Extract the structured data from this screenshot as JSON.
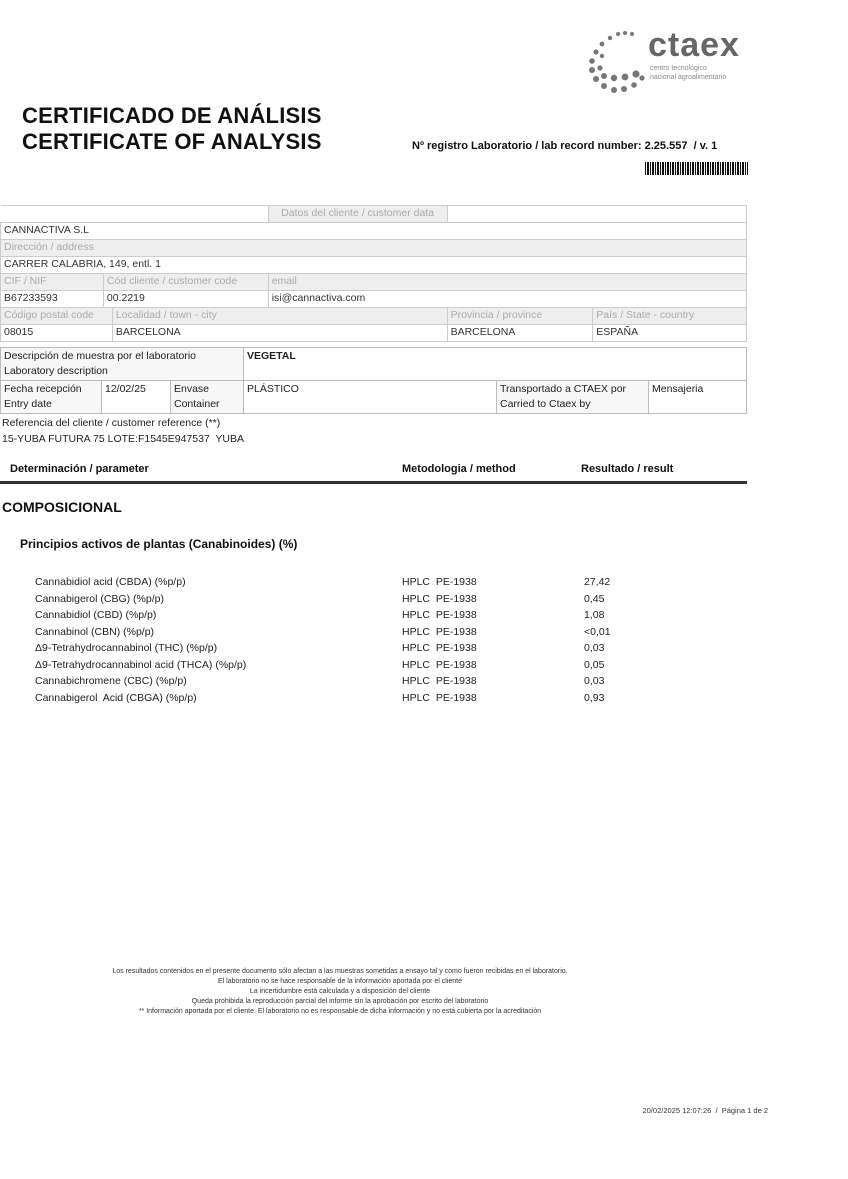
{
  "logo": {
    "name": "ctaex",
    "subtitle_1": "centro tecnológico",
    "subtitle_2": "nacional agroalimentario"
  },
  "title": {
    "es": "CERTIFICADO DE ANÁLISIS",
    "en": "CERTIFICATE OF ANALYSIS"
  },
  "record": {
    "label": "Nº registro Laboratorio / lab record number:",
    "number": "2.25.557",
    "version": "/ v. 1"
  },
  "customer": {
    "header": "Datos del cliente / customer data",
    "name": "CANNACTIVA S.L",
    "address_label": "Dirección / address",
    "address": "CARRER CALABRIA, 149, entl. 1",
    "cif_label": "CIF / NIF",
    "code_label": "Cód cliente / customer code",
    "email_label": "email",
    "cif": "B67233593",
    "code": "00.2219",
    "email": "isi@cannactiva.com",
    "postal_label": "Código postal code",
    "town_label": "Localidad / town - city",
    "province_label": "Provincia / province",
    "country_label": "País / State - country",
    "postal": "08015",
    "town": "BARCELONA",
    "province": "BARCELONA",
    "country": "ESPAÑA"
  },
  "sample": {
    "desc_label_1": "Descripción de muestra por el laboratorio",
    "desc_label_2": "Laboratory description",
    "desc": "VEGETAL",
    "date_label_1": "Fecha recepción",
    "date_label_2": "Entry date",
    "date": "12/02/25",
    "container_label_1": "Envase",
    "container_label_2": "Container",
    "container": "PLÁSTICO",
    "carried_label_1": "Transportado a CTAEX por",
    "carried_label_2": "Carried to Ctaex by",
    "carried": "Mensajeria",
    "ref_label": "Referencia del cliente / customer reference (**)",
    "ref": "15-YUBA FUTURA 75 LOTE:F1545E947537  YUBA"
  },
  "columns": {
    "parameter": "Determinación / parameter",
    "method": "Metodologia / method",
    "result": "Resultado / result"
  },
  "section": "COMPOSICIONAL",
  "subsection": "Principios activos de plantas (Canabinoides) (%)",
  "results": [
    {
      "parameter": "Cannabidiol acid (CBDA) (%p/p)",
      "method": "HPLC  PE-1938",
      "result": "27,42"
    },
    {
      "parameter": "Cannabigerol (CBG) (%p/p)",
      "method": "HPLC  PE-1938",
      "result": "0,45"
    },
    {
      "parameter": "Cannabidiol (CBD) (%p/p)",
      "method": "HPLC  PE-1938",
      "result": "1,08"
    },
    {
      "parameter": "Cannabinol (CBN) (%p/p)",
      "method": "HPLC  PE-1938",
      "result": "<0,01"
    },
    {
      "parameter": "Δ9-Tetrahydrocannabinol (THC) (%p/p)",
      "method": "HPLC  PE-1938",
      "result": "0,03"
    },
    {
      "parameter": "Δ9-Tetrahydrocannabinol acid (THCA) (%p/p)",
      "method": "HPLC  PE-1938",
      "result": "0,05"
    },
    {
      "parameter": "Cannabichromene (CBC) (%p/p)",
      "method": "HPLC  PE-1938",
      "result": "0,03"
    },
    {
      "parameter": "Cannabigerol  Acid (CBGA) (%p/p)",
      "method": "HPLC  PE-1938",
      "result": "0,93"
    }
  ],
  "footer": [
    "Los resultados contenidos en el presente documento sólo afectan a las muestras sometidas a ensayo tal y como fueron recibidas en el laboratorio.",
    "El laboratorio no se hace responsable de la información aportada por el cliente",
    "La incertidumbre está calculada y a disposición del cliente",
    "Queda prohibida la reproducción parcial del informe sin la aprobación por escrito del laboratorio",
    "** Información aportada por el cliente. El laboratorio no es responsable de dicha información y no está cubierta por la acreditación"
  ],
  "page_footer": "20/02/2025 12:07:26  /  Página 1 de 2"
}
